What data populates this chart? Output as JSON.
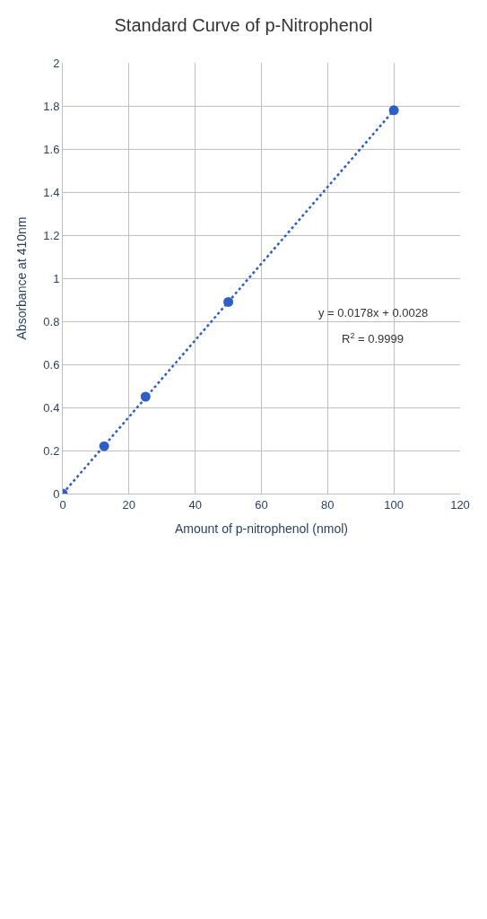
{
  "chart_data": {
    "type": "scatter",
    "title": "Standard Curve of p-Nitrophenol",
    "xlabel": "Amount of p-nitrophenol (nmol)",
    "ylabel": "Absorbance at 410nm",
    "x": [
      0,
      12.5,
      25,
      50,
      100
    ],
    "series": [
      {
        "color": "#2f5fc4",
        "values": [
          0,
          0.22,
          0.45,
          0.89,
          1.78
        ],
        "marker": "circle"
      },
      {
        "type": "line",
        "color": "#2f5fc4",
        "x": [
          0,
          100
        ],
        "values": [
          0,
          1.78
        ],
        "marker": "none",
        "line_style": "dotted"
      }
    ],
    "annotations": [
      "y = 0.0178x + 0.0028",
      "R$^{2}$ = 0.9999"
    ],
    "xlim": [
      0,
      120
    ],
    "xticks": [
      0,
      20,
      40,
      60,
      80,
      100,
      120
    ],
    "ylim": [
      0,
      2
    ],
    "yticks": [
      0,
      0.2,
      0.4,
      0.6,
      0.8,
      1,
      1.2,
      1.4,
      1.6,
      1.8,
      2
    ],
    "grid": true
  }
}
